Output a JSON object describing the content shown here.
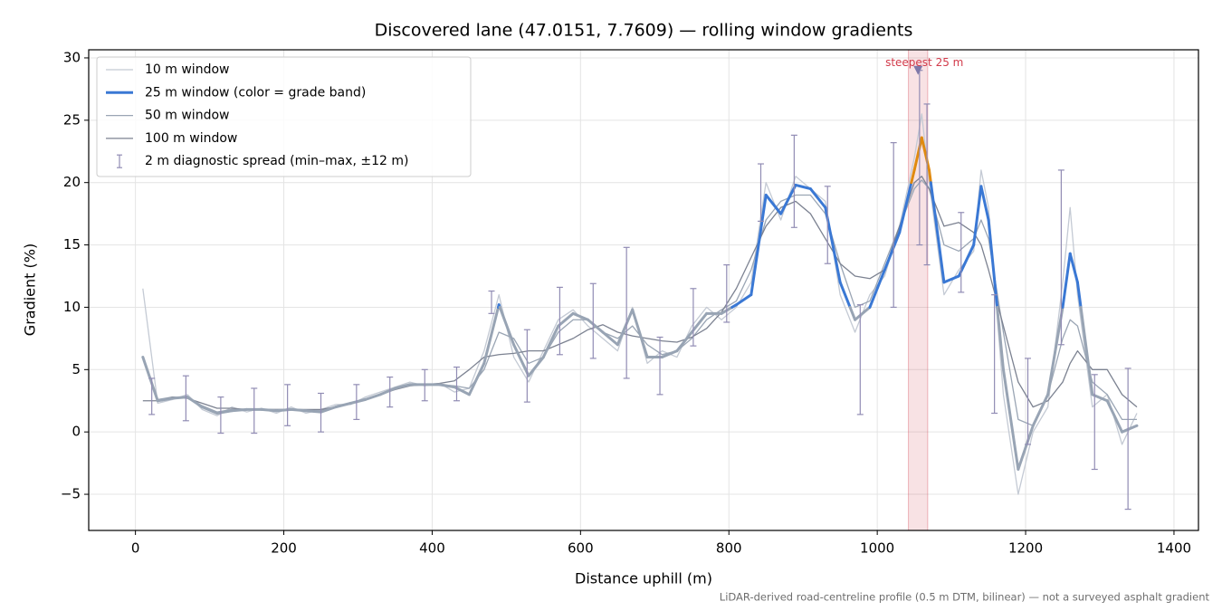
{
  "chart_data": {
    "type": "line",
    "title": "Discovered lane (47.0151, 7.7609) — rolling window gradients",
    "xlabel": "Distance uphill (m)",
    "ylabel": "Gradient (%)",
    "footnote": "LiDAR-derived road-centreline profile (0.5 m DTM, bilinear) — not a surveyed asphalt gradient",
    "xlim": [
      -63,
      1433
    ],
    "ylim": [
      -7.9,
      30.65
    ],
    "xticks": [
      0,
      200,
      400,
      600,
      800,
      1000,
      1200,
      1400
    ],
    "yticks": [
      {
        "value": -5,
        "label": "−5"
      },
      0,
      5,
      10,
      15,
      20,
      25,
      30
    ],
    "grid": true,
    "legend": "upper left",
    "x": [
      10,
      30,
      50,
      70,
      90,
      110,
      130,
      150,
      170,
      190,
      210,
      230,
      250,
      270,
      290,
      310,
      330,
      350,
      370,
      390,
      410,
      430,
      450,
      470,
      490,
      510,
      530,
      550,
      570,
      590,
      610,
      630,
      650,
      670,
      690,
      710,
      730,
      750,
      770,
      790,
      810,
      830,
      850,
      870,
      890,
      910,
      930,
      950,
      970,
      990,
      1010,
      1030,
      1050,
      1060,
      1070,
      1090,
      1110,
      1130,
      1140,
      1150,
      1170,
      1190,
      1210,
      1230,
      1250,
      1260,
      1270,
      1290,
      1310,
      1330,
      1350
    ],
    "series": [
      {
        "name": "10 m window",
        "color": "#c4cad4",
        "width": 1.3,
        "values": [
          11.5,
          2.3,
          2.6,
          3.0,
          1.8,
          1.3,
          2.0,
          1.6,
          1.9,
          1.5,
          2.0,
          1.5,
          1.8,
          2.2,
          2.2,
          2.8,
          3.2,
          3.6,
          4.0,
          3.7,
          3.9,
          3.2,
          3.5,
          6.5,
          11.0,
          6.0,
          4.0,
          6.5,
          9.0,
          9.8,
          8.5,
          7.5,
          6.5,
          10.0,
          5.5,
          6.5,
          6.0,
          8.5,
          10.0,
          9.0,
          10.0,
          12.0,
          20.0,
          17.0,
          20.5,
          19.5,
          18.5,
          11.0,
          8.0,
          11.0,
          12.5,
          16.5,
          22.0,
          25.5,
          20.0,
          11.0,
          13.0,
          14.5,
          21.0,
          18.0,
          3.0,
          -5.0,
          0.0,
          2.0,
          12.0,
          18.0,
          11.0,
          2.0,
          3.0,
          -1.0,
          1.5
        ]
      },
      {
        "name": "25 m window (color = grade band)",
        "color": "#3a78d4",
        "width": 3,
        "bands": [
          10,
          20
        ],
        "band_colors": [
          "#98a4b4",
          "#3a78d4",
          "#e08a10"
        ],
        "values": [
          6.0,
          2.5,
          2.7,
          2.8,
          2.0,
          1.5,
          1.7,
          1.8,
          1.8,
          1.7,
          1.8,
          1.7,
          1.6,
          2.0,
          2.3,
          2.6,
          3.0,
          3.5,
          3.8,
          3.8,
          3.8,
          3.6,
          3.0,
          5.5,
          10.2,
          7.0,
          4.5,
          6.0,
          8.5,
          9.5,
          9.0,
          8.0,
          7.0,
          9.8,
          6.0,
          6.0,
          6.5,
          8.0,
          9.5,
          9.5,
          10.2,
          11.0,
          19.0,
          17.5,
          19.8,
          19.5,
          18.0,
          12.0,
          9.0,
          10.0,
          13.0,
          16.0,
          21.0,
          23.6,
          21.0,
          12.0,
          12.5,
          15.0,
          19.7,
          17.0,
          5.0,
          -3.0,
          0.5,
          3.0,
          10.0,
          14.3,
          12.0,
          3.0,
          2.5,
          0.0,
          0.5
        ]
      },
      {
        "name": "50 m window",
        "color": "#9aa5b4",
        "width": 1.3,
        "values": [
          6.0,
          2.6,
          2.8,
          2.7,
          2.1,
          1.6,
          1.8,
          1.8,
          1.8,
          1.8,
          1.8,
          1.7,
          1.7,
          2.0,
          2.3,
          2.6,
          3.0,
          3.5,
          3.8,
          3.8,
          3.8,
          3.7,
          3.5,
          5.0,
          8.0,
          7.5,
          5.5,
          6.0,
          8.0,
          9.0,
          9.0,
          8.0,
          7.5,
          8.5,
          7.0,
          6.2,
          6.5,
          7.5,
          9.0,
          9.8,
          10.5,
          13.0,
          17.0,
          18.5,
          19.0,
          19.0,
          17.5,
          13.5,
          10.0,
          10.5,
          13.5,
          16.5,
          19.5,
          20.2,
          19.5,
          15.0,
          14.5,
          15.5,
          17.0,
          15.5,
          8.0,
          1.0,
          0.5,
          3.0,
          7.5,
          9.0,
          8.5,
          4.0,
          3.0,
          1.0,
          1.0
        ]
      },
      {
        "name": "100 m window",
        "color": "#7c8291",
        "width": 1.3,
        "values": [
          2.5,
          2.5,
          2.8,
          2.7,
          2.3,
          1.9,
          1.9,
          1.8,
          1.8,
          1.8,
          1.8,
          1.8,
          1.8,
          2.0,
          2.3,
          2.6,
          3.0,
          3.4,
          3.7,
          3.8,
          3.9,
          4.1,
          5.0,
          6.0,
          6.2,
          6.3,
          6.5,
          6.5,
          7.0,
          7.5,
          8.2,
          8.6,
          8.0,
          7.7,
          7.5,
          7.3,
          7.2,
          7.6,
          8.3,
          9.6,
          11.5,
          14.0,
          16.5,
          18.0,
          18.5,
          17.5,
          15.5,
          13.5,
          12.5,
          12.3,
          13.0,
          16.5,
          20.0,
          20.5,
          19.5,
          16.5,
          16.8,
          16.0,
          15.0,
          13.0,
          8.5,
          4.0,
          2.0,
          2.5,
          4.0,
          5.5,
          6.5,
          5.0,
          5.0,
          3.0,
          2.0
        ]
      }
    ],
    "errorbars": {
      "name": "2 m diagnostic spread (min–max, ±12 m)",
      "color": "#918cb4",
      "x": [
        22,
        68,
        115,
        160,
        205,
        250,
        298,
        343,
        390,
        433,
        480,
        528,
        572,
        617,
        662,
        707,
        752,
        797,
        843,
        888,
        933,
        977,
        1022,
        1057,
        1067,
        1113,
        1158,
        1203,
        1248,
        1293,
        1338
      ],
      "low": [
        1.4,
        0.9,
        -0.1,
        -0.1,
        0.5,
        0.0,
        1.0,
        2.0,
        2.5,
        2.5,
        9.5,
        2.4,
        6.2,
        5.9,
        4.3,
        3.0,
        6.9,
        8.8,
        16.9,
        16.4,
        13.5,
        1.4,
        10.0,
        15.0,
        13.4,
        11.2,
        1.5,
        -1.0,
        7.0,
        -3.0,
        -6.2
      ],
      "high": [
        4.3,
        4.5,
        2.8,
        3.5,
        3.8,
        3.1,
        3.8,
        4.4,
        5.0,
        5.2,
        11.3,
        8.2,
        11.6,
        11.9,
        14.8,
        7.6,
        11.5,
        13.4,
        21.5,
        23.8,
        19.7,
        10.2,
        23.2,
        29.0,
        26.3,
        17.6,
        11.0,
        5.9,
        21.0,
        4.6,
        5.1
      ]
    },
    "highlight": {
      "label": "steepest 25 m",
      "x_range": [
        1042,
        1068
      ],
      "marker_x": 1055,
      "marker_y": 29,
      "color": "#d23a4a"
    }
  }
}
